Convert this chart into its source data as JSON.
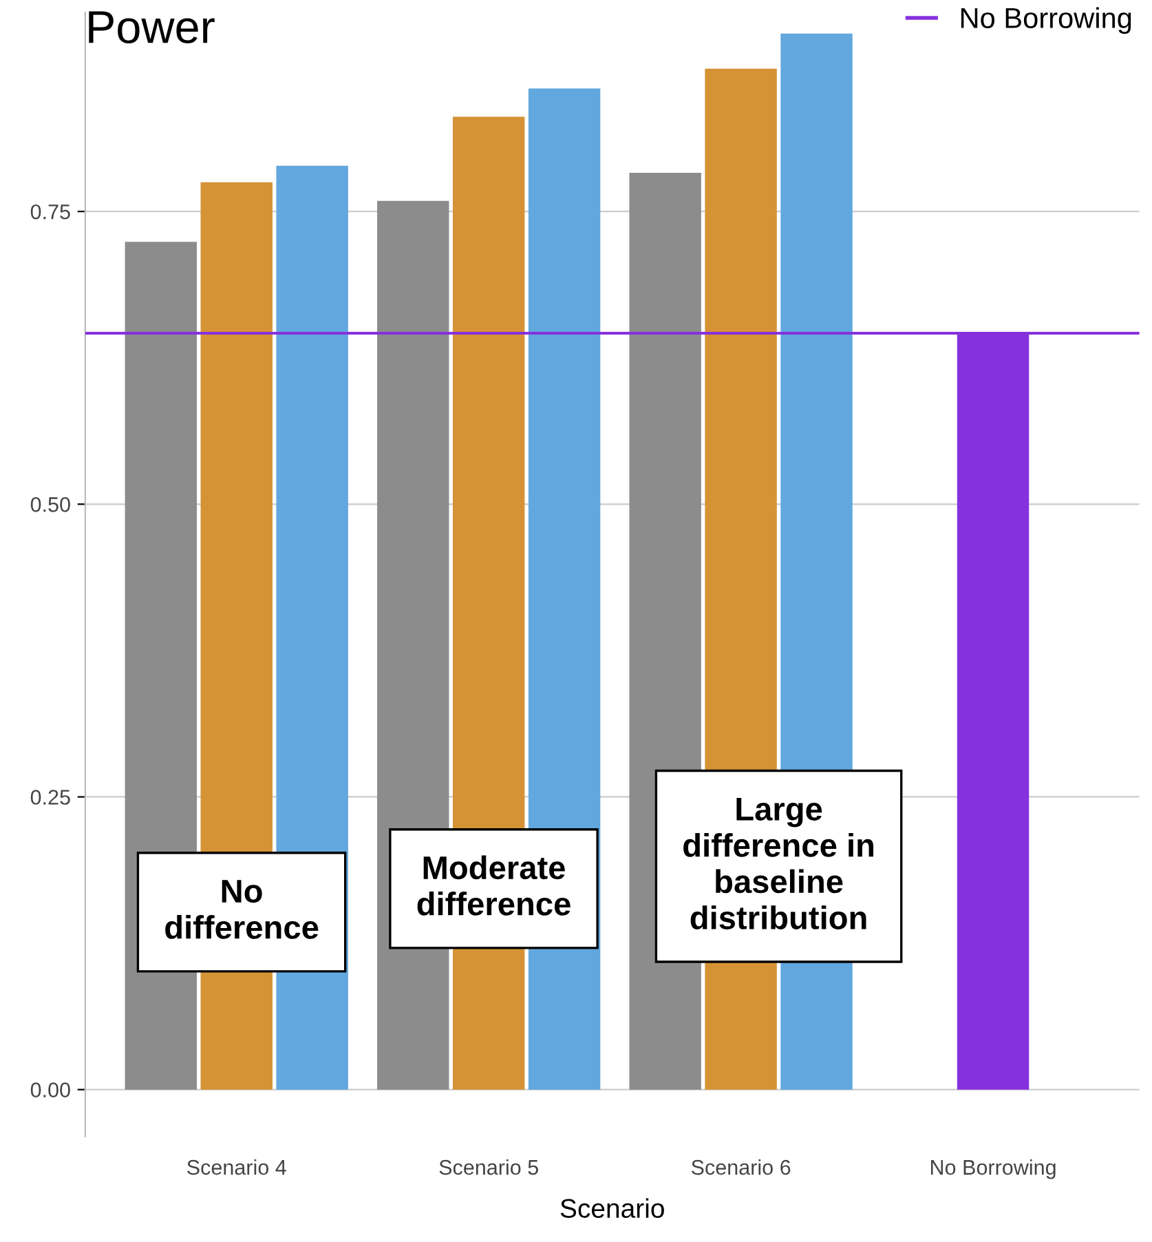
{
  "chart_data": {
    "type": "bar",
    "title": "Power",
    "xlabel": "Scenario",
    "legend": "top right",
    "categories": [
      "Scenario 4",
      "Scenario 5",
      "Scenario 6",
      "No Borrowing"
    ],
    "series": [
      {
        "color": "#8c8c8c",
        "values": [
          0.724,
          0.759,
          0.783,
          null
        ]
      },
      {
        "color": "#d59336",
        "values": [
          0.775,
          0.831,
          0.872,
          null
        ]
      },
      {
        "color": "#62a7de",
        "values": [
          0.789,
          0.855,
          0.902,
          null
        ]
      },
      {
        "color": "#8631de",
        "values": [
          null,
          null,
          null,
          0.646
        ]
      }
    ],
    "ylim": [
      -0.04,
      0.92
    ],
    "yticks": [
      {
        "value": 0,
        "label": "0.00"
      },
      {
        "value": 0.25,
        "label": "0.25"
      },
      {
        "value": 0.5,
        "label": "0.50"
      },
      {
        "value": 0.75,
        "label": "0.75"
      }
    ],
    "grid": "y",
    "ref_lines": [
      {
        "axis": "y",
        "value": 0.646,
        "color": "#8631de",
        "label": "No Borrowing"
      }
    ],
    "annotations": [
      "No\ndifference",
      "Moderate\ndifference",
      "Large\ndifference in\nbaseline\ndistribution"
    ]
  }
}
